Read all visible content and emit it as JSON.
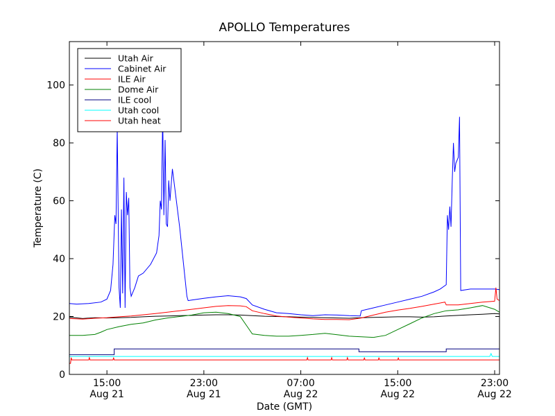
{
  "chart_data": {
    "type": "line",
    "title": "APOLLO Temperatures",
    "xlabel": "Date (GMT)",
    "ylabel": "Temperature (C)",
    "xlim": [
      11.9,
      47.4
    ],
    "ylim": [
      0,
      115
    ],
    "grid": false,
    "legend_position": "top-left",
    "y_ticks": [
      0,
      20,
      40,
      60,
      80,
      100
    ],
    "x_ticks": [
      {
        "x": 15,
        "time": "15:00",
        "date": "Aug 21"
      },
      {
        "x": 23,
        "time": "23:00",
        "date": "Aug 21"
      },
      {
        "x": 31,
        "time": "07:00",
        "date": "Aug 22"
      },
      {
        "x": 39,
        "time": "15:00",
        "date": "Aug 22"
      },
      {
        "x": 47,
        "time": "23:00",
        "date": "Aug 22"
      }
    ],
    "x_unit_note": "x values are hours from Aug 21 00:00 GMT",
    "series": [
      {
        "name": "Utah Air",
        "color": "#000000",
        "points": [
          [
            11.9,
            19.8
          ],
          [
            13,
            19.3
          ],
          [
            14,
            19.6
          ],
          [
            15,
            19.5
          ],
          [
            16,
            19.6
          ],
          [
            17,
            19.7
          ],
          [
            18,
            19.9
          ],
          [
            19,
            20.1
          ],
          [
            20,
            20.2
          ],
          [
            21,
            20.3
          ],
          [
            22,
            20.4
          ],
          [
            23,
            20.5
          ],
          [
            24,
            20.6
          ],
          [
            25,
            20.6
          ],
          [
            26,
            20.5
          ],
          [
            27,
            20.3
          ],
          [
            28,
            20.1
          ],
          [
            29,
            20.0
          ],
          [
            30,
            19.9
          ],
          [
            31,
            19.8
          ],
          [
            32,
            19.7
          ],
          [
            33,
            19.6
          ],
          [
            34,
            19.5
          ],
          [
            35,
            19.4
          ],
          [
            36,
            19.6
          ],
          [
            37,
            19.7
          ],
          [
            38,
            19.8
          ],
          [
            39,
            19.9
          ],
          [
            40,
            19.9
          ],
          [
            41,
            19.8
          ],
          [
            42,
            19.9
          ],
          [
            43,
            20.2
          ],
          [
            44,
            20.4
          ],
          [
            45,
            20.6
          ],
          [
            46,
            20.8
          ],
          [
            47,
            21.0
          ],
          [
            47.4,
            20.9
          ]
        ]
      },
      {
        "name": "Cabinet Air",
        "color": "#0000ff",
        "points": [
          [
            11.9,
            24.5
          ],
          [
            12.5,
            24.3
          ],
          [
            13.5,
            24.5
          ],
          [
            14.5,
            25.0
          ],
          [
            15.0,
            26.0
          ],
          [
            15.3,
            29.0
          ],
          [
            15.5,
            38.0
          ],
          [
            15.65,
            55.0
          ],
          [
            15.75,
            52.0
          ],
          [
            15.85,
            85.0
          ],
          [
            16.0,
            30.0
          ],
          [
            16.1,
            23.0
          ],
          [
            16.2,
            57.0
          ],
          [
            16.3,
            28.0
          ],
          [
            16.4,
            68.0
          ],
          [
            16.5,
            23.0
          ],
          [
            16.6,
            63.0
          ],
          [
            16.7,
            55.0
          ],
          [
            16.8,
            61.0
          ],
          [
            16.9,
            30.0
          ],
          [
            17.0,
            27.0
          ],
          [
            17.3,
            30.0
          ],
          [
            17.6,
            34.0
          ],
          [
            18.0,
            35.0
          ],
          [
            18.6,
            38.0
          ],
          [
            19.1,
            42.0
          ],
          [
            19.3,
            48.0
          ],
          [
            19.4,
            60.0
          ],
          [
            19.5,
            57.0
          ],
          [
            19.6,
            90.0
          ],
          [
            19.7,
            55.0
          ],
          [
            19.8,
            81.0
          ],
          [
            19.9,
            52.0
          ],
          [
            20.0,
            51.0
          ],
          [
            20.1,
            67.0
          ],
          [
            20.2,
            60.0
          ],
          [
            20.4,
            71.0
          ],
          [
            21.0,
            51.0
          ],
          [
            21.6,
            27.0
          ],
          [
            21.7,
            25.5
          ],
          [
            22,
            25.7
          ],
          [
            23,
            26.3
          ],
          [
            24,
            26.8
          ],
          [
            25,
            27.2
          ],
          [
            26,
            26.8
          ],
          [
            26.5,
            26.2
          ],
          [
            27,
            24.0
          ],
          [
            28,
            22.5
          ],
          [
            29,
            21.3
          ],
          [
            30,
            21.0
          ],
          [
            31,
            20.6
          ],
          [
            32,
            20.3
          ],
          [
            33,
            20.6
          ],
          [
            34,
            20.5
          ],
          [
            35,
            20.3
          ],
          [
            35.9,
            20.2
          ],
          [
            36,
            22.0
          ],
          [
            37,
            23.0
          ],
          [
            38,
            24.0
          ],
          [
            39,
            25.0
          ],
          [
            40,
            26.0
          ],
          [
            41,
            27.0
          ],
          [
            42,
            28.5
          ],
          [
            42.5,
            29.5
          ],
          [
            43,
            31.0
          ],
          [
            43.1,
            55.0
          ],
          [
            43.2,
            50.0
          ],
          [
            43.3,
            58.0
          ],
          [
            43.4,
            51.0
          ],
          [
            43.5,
            67.0
          ],
          [
            43.6,
            80.0
          ],
          [
            43.7,
            70.0
          ],
          [
            43.8,
            73.0
          ],
          [
            44.0,
            75.0
          ],
          [
            44.1,
            89.0
          ],
          [
            44.2,
            29.0
          ],
          [
            45,
            29.5
          ],
          [
            46,
            29.5
          ],
          [
            47,
            29.5
          ],
          [
            47.4,
            29.3
          ]
        ]
      },
      {
        "name": "ILE Air",
        "color": "#ff0000",
        "points": [
          [
            11.9,
            19.3
          ],
          [
            13,
            19.1
          ],
          [
            14,
            19.4
          ],
          [
            15,
            19.6
          ],
          [
            16,
            19.9
          ],
          [
            17,
            20.2
          ],
          [
            18,
            20.6
          ],
          [
            19,
            21.0
          ],
          [
            20,
            21.5
          ],
          [
            21,
            22.0
          ],
          [
            22,
            22.5
          ],
          [
            23,
            23.0
          ],
          [
            24,
            23.5
          ],
          [
            25,
            23.8
          ],
          [
            26,
            23.7
          ],
          [
            26.5,
            23.4
          ],
          [
            27,
            22.0
          ],
          [
            28,
            21.0
          ],
          [
            29,
            20.2
          ],
          [
            30,
            19.8
          ],
          [
            31,
            19.5
          ],
          [
            32,
            19.2
          ],
          [
            33,
            19.0
          ],
          [
            34,
            19.0
          ],
          [
            35,
            18.9
          ],
          [
            36,
            19.5
          ],
          [
            37,
            20.5
          ],
          [
            38,
            21.5
          ],
          [
            39,
            22.2
          ],
          [
            40,
            22.8
          ],
          [
            41,
            23.5
          ],
          [
            42,
            24.3
          ],
          [
            42.9,
            25.0
          ],
          [
            43,
            24.0
          ],
          [
            44,
            24.0
          ],
          [
            45,
            24.5
          ],
          [
            46,
            25.0
          ],
          [
            47,
            25.3
          ],
          [
            47.1,
            30.0
          ],
          [
            47.2,
            26.0
          ],
          [
            47.4,
            25.5
          ]
        ]
      },
      {
        "name": "Dome Air",
        "color": "#008000",
        "points": [
          [
            11.9,
            13.5
          ],
          [
            13,
            13.5
          ],
          [
            14,
            13.8
          ],
          [
            14.5,
            14.6
          ],
          [
            15,
            15.5
          ],
          [
            16,
            16.5
          ],
          [
            17,
            17.3
          ],
          [
            18,
            17.8
          ],
          [
            19,
            18.8
          ],
          [
            20,
            19.5
          ],
          [
            21,
            20.0
          ],
          [
            22,
            20.5
          ],
          [
            23,
            21.3
          ],
          [
            24,
            21.5
          ],
          [
            25,
            21.0
          ],
          [
            26,
            20.0
          ],
          [
            26.5,
            17.0
          ],
          [
            27,
            14.0
          ],
          [
            28,
            13.5
          ],
          [
            29,
            13.2
          ],
          [
            30,
            13.2
          ],
          [
            31,
            13.5
          ],
          [
            32,
            13.8
          ],
          [
            33,
            14.2
          ],
          [
            34,
            13.7
          ],
          [
            35,
            13.2
          ],
          [
            36,
            13.0
          ],
          [
            37,
            12.8
          ],
          [
            38,
            13.5
          ],
          [
            39,
            15.5
          ],
          [
            40,
            17.5
          ],
          [
            41,
            19.5
          ],
          [
            42,
            21.0
          ],
          [
            43,
            22.0
          ],
          [
            44,
            22.3
          ],
          [
            45,
            23.0
          ],
          [
            46,
            23.8
          ],
          [
            47,
            22.5
          ],
          [
            47.4,
            21.5
          ]
        ]
      },
      {
        "name": "ILE cool",
        "color": "#000080",
        "points": [
          [
            11.9,
            6.8
          ],
          [
            15.6,
            6.8
          ],
          [
            15.6,
            8.8
          ],
          [
            35.8,
            8.8
          ],
          [
            35.8,
            7.8
          ],
          [
            43.0,
            7.8
          ],
          [
            43.0,
            8.8
          ],
          [
            47.4,
            8.8
          ]
        ]
      },
      {
        "name": "Utah cool",
        "color": "#00ffff",
        "points": [
          [
            11.9,
            6.2
          ],
          [
            46.6,
            6.2
          ],
          [
            46.7,
            7.2
          ],
          [
            46.8,
            6.2
          ],
          [
            47.4,
            6.2
          ]
        ]
      },
      {
        "name": "Utah heat",
        "color": "#ff0000",
        "points": [
          [
            11.9,
            3.8
          ],
          [
            12.0,
            3.8
          ],
          [
            12.05,
            5.8
          ],
          [
            12.1,
            5.0
          ],
          [
            13.5,
            5.0
          ],
          [
            13.55,
            5.8
          ],
          [
            13.6,
            5.0
          ],
          [
            15.5,
            5.0
          ],
          [
            15.55,
            5.8
          ],
          [
            15.6,
            5.0
          ],
          [
            31.5,
            5.0
          ],
          [
            31.55,
            5.8
          ],
          [
            31.6,
            5.0
          ],
          [
            33.5,
            5.0
          ],
          [
            33.55,
            5.8
          ],
          [
            33.6,
            5.0
          ],
          [
            34.8,
            5.0
          ],
          [
            34.85,
            5.8
          ],
          [
            34.9,
            5.0
          ],
          [
            36.2,
            5.0
          ],
          [
            36.25,
            5.8
          ],
          [
            36.3,
            5.0
          ],
          [
            37.4,
            5.0
          ],
          [
            37.45,
            5.8
          ],
          [
            37.5,
            5.0
          ],
          [
            39.0,
            5.0
          ],
          [
            39.05,
            5.8
          ],
          [
            39.1,
            5.0
          ],
          [
            47.4,
            5.0
          ]
        ]
      }
    ]
  }
}
